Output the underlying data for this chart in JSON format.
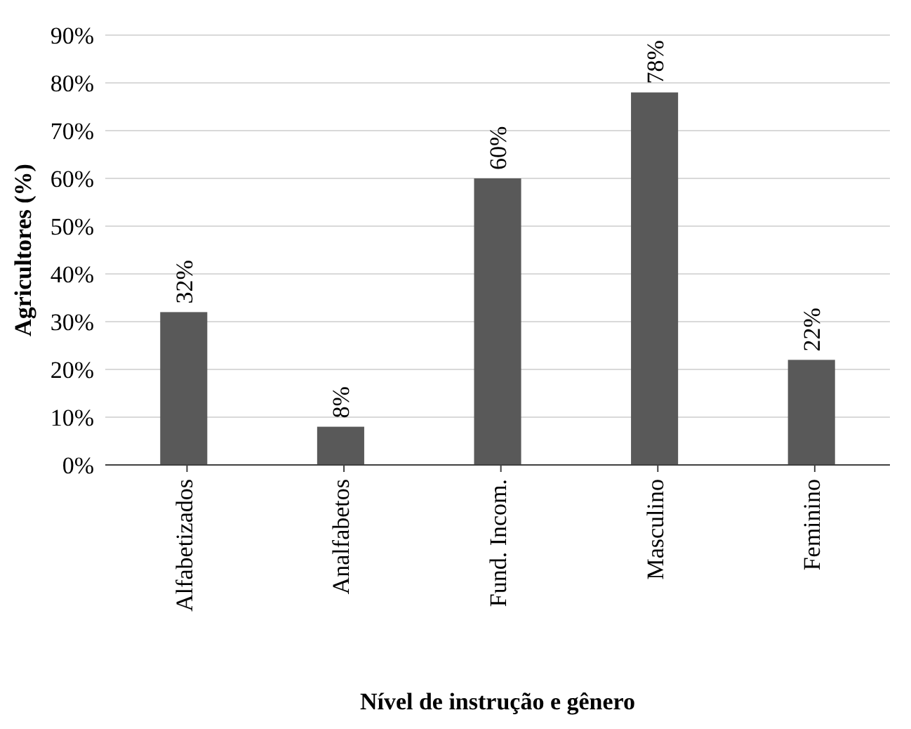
{
  "chart_data": {
    "type": "bar",
    "xlabel": "Nível de instrução e gênero",
    "ylabel": "Agricultores (%)",
    "categories": [
      "Alfabetizados",
      "Analfabetos",
      "Fund. Incom.",
      "Masculino",
      "Feminino"
    ],
    "values": [
      32,
      8,
      60,
      78,
      22
    ],
    "color": "#595959",
    "value_labels": [
      "32%",
      "8%",
      "60%",
      "78%",
      "22%"
    ],
    "ylim": [
      0,
      90
    ],
    "yticks": [
      {
        "value": 0,
        "label": "0%"
      },
      {
        "value": 10,
        "label": "10%"
      },
      {
        "value": 20,
        "label": "20%"
      },
      {
        "value": 30,
        "label": "30%"
      },
      {
        "value": 40,
        "label": "40%"
      },
      {
        "value": 50,
        "label": "50%"
      },
      {
        "value": 60,
        "label": "60%"
      },
      {
        "value": 70,
        "label": "70%"
      },
      {
        "value": 80,
        "label": "80%"
      },
      {
        "value": 90,
        "label": "90%"
      }
    ],
    "grid": "y"
  }
}
